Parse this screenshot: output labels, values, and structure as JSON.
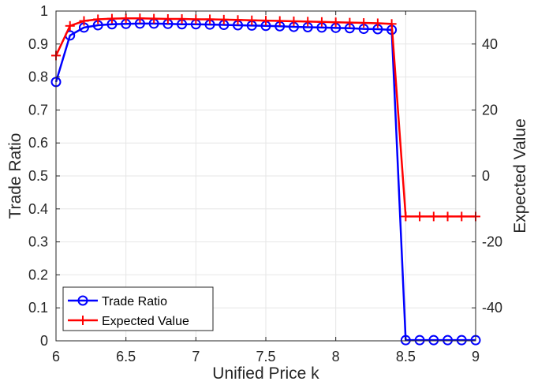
{
  "chart_data": {
    "type": "line",
    "xlabel": "Unified Price k",
    "ylabel_left": "Trade Ratio",
    "ylabel_right": "Expected Value",
    "xlim": [
      6,
      9
    ],
    "ylim_left": [
      0,
      1
    ],
    "ylim_right": [
      -50,
      50
    ],
    "x_ticks": [
      "6",
      "6.5",
      "7",
      "7.5",
      "8",
      "8.5",
      "9"
    ],
    "y_ticks_left": [
      "0",
      "0.1",
      "0.2",
      "0.3",
      "0.4",
      "0.5",
      "0.6",
      "0.7",
      "0.8",
      "0.9",
      "1"
    ],
    "y_ticks_right": [
      "-40",
      "-20",
      "0",
      "20",
      "40"
    ],
    "grid": true,
    "legend_position": "bottom-left",
    "series": [
      {
        "name": "Trade Ratio",
        "axis": "left",
        "color": "#0000ff",
        "marker": "circle",
        "x": [
          6.0,
          6.1,
          6.2,
          6.3,
          6.4,
          6.5,
          6.6,
          6.7,
          6.8,
          6.9,
          7.0,
          7.1,
          7.2,
          7.3,
          7.4,
          7.5,
          7.6,
          7.7,
          7.8,
          7.9,
          8.0,
          8.1,
          8.2,
          8.3,
          8.4,
          8.5,
          8.6,
          8.7,
          8.8,
          8.9,
          9.0
        ],
        "values": [
          0.785,
          0.926,
          0.95,
          0.957,
          0.96,
          0.961,
          0.962,
          0.962,
          0.961,
          0.96,
          0.96,
          0.959,
          0.958,
          0.957,
          0.956,
          0.955,
          0.954,
          0.952,
          0.951,
          0.95,
          0.949,
          0.948,
          0.946,
          0.945,
          0.943,
          0.002,
          0.002,
          0.002,
          0.002,
          0.002,
          0.002
        ]
      },
      {
        "name": "Expected Value",
        "axis": "right",
        "color": "#ff0000",
        "marker": "plus",
        "x": [
          6.0,
          6.1,
          6.2,
          6.3,
          6.4,
          6.5,
          6.6,
          6.7,
          6.8,
          6.9,
          7.0,
          7.1,
          7.2,
          7.3,
          7.4,
          7.5,
          7.6,
          7.7,
          7.8,
          7.9,
          8.0,
          8.1,
          8.2,
          8.3,
          8.4,
          8.5,
          8.6,
          8.7,
          8.8,
          8.9,
          9.0
        ],
        "values": [
          36.5,
          45.5,
          47.0,
          47.5,
          47.7,
          47.8,
          47.8,
          47.7,
          47.6,
          47.6,
          47.5,
          47.5,
          47.4,
          47.3,
          47.2,
          47.1,
          47.0,
          46.9,
          46.8,
          46.7,
          46.6,
          46.5,
          46.4,
          46.3,
          46.1,
          -12.3,
          -12.3,
          -12.3,
          -12.3,
          -12.3,
          -12.3
        ]
      }
    ]
  }
}
